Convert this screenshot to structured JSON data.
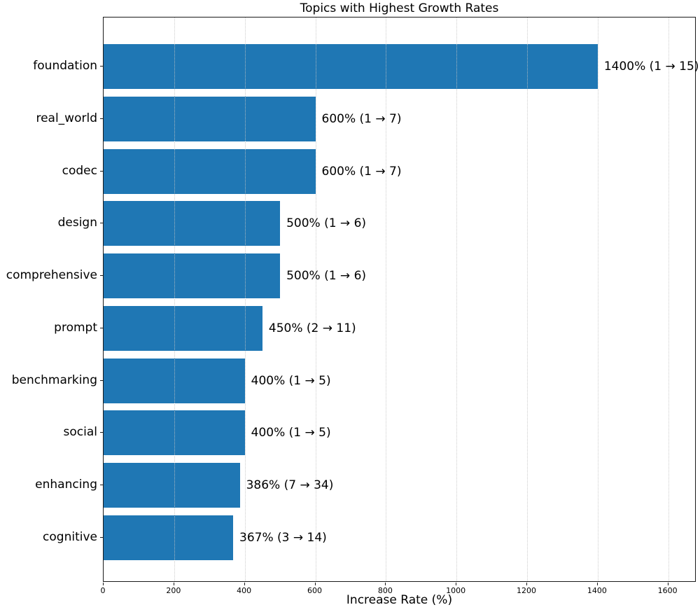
{
  "colors": {
    "bar": "#1f77b4",
    "grid": "#c3c3c3",
    "spine": "#1a1a1a",
    "text": "#000000",
    "background": "#ffffff"
  },
  "chart_data": {
    "type": "bar",
    "orientation": "horizontal",
    "title": "Topics with Highest Growth Rates",
    "xlabel": "Increase Rate (%)",
    "ylabel": "",
    "categories": [
      "foundation",
      "real_world",
      "codec",
      "design",
      "comprehensive",
      "prompt",
      "benchmarking",
      "social",
      "enhancing",
      "cognitive"
    ],
    "values": [
      1400,
      600,
      600,
      500,
      500,
      450,
      400,
      400,
      386,
      367
    ],
    "bar_labels": [
      "1400% (1 → 15)",
      "600% (1 → 7)",
      "600% (1 → 7)",
      "500% (1 → 6)",
      "500% (1 → 6)",
      "450% (2 → 11)",
      "400% (1 → 5)",
      "400% (1 → 5)",
      "386% (7 → 34)",
      "367% (3 → 14)"
    ],
    "counts_start": [
      1,
      1,
      1,
      1,
      1,
      2,
      1,
      1,
      7,
      3
    ],
    "counts_end": [
      15,
      7,
      7,
      6,
      6,
      11,
      5,
      5,
      34,
      14
    ],
    "x_ticks": [
      "0",
      "200",
      "400",
      "600",
      "800",
      "1000",
      "1200",
      "1400",
      "1600"
    ],
    "x_tick_values": [
      0,
      200,
      400,
      600,
      800,
      1000,
      1200,
      1400,
      1600
    ],
    "xlim": [
      0,
      1680
    ],
    "grid": true,
    "grid_style": "dotted",
    "legend": "none",
    "bar_color": "#1f77b4"
  }
}
